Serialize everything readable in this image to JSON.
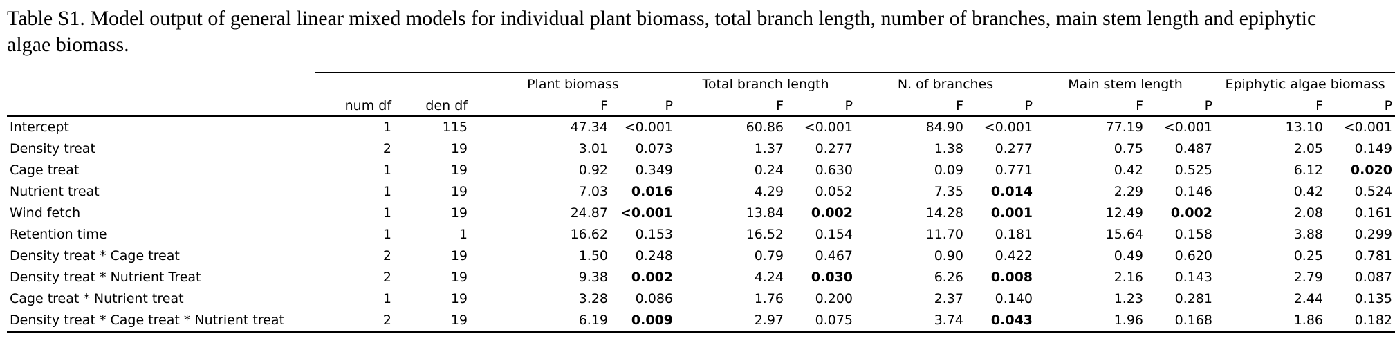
{
  "caption": "Table S1. Model output of general linear mixed models for individual plant biomass, total branch length, number of branches, main stem length and epiphytic algae biomass.",
  "groups": [
    "Plant biomass",
    "Total branch length",
    "N. of branches",
    "Main stem length",
    "Epiphytic algae biomass"
  ],
  "subheaders": {
    "num_df": "num df",
    "den_df": "den df",
    "f": "F",
    "p": "P"
  },
  "rows": [
    {
      "label": "Intercept",
      "num_df": "1",
      "den_df": "115",
      "cells": [
        {
          "f": "47.34",
          "p": "<0.001",
          "bold": false
        },
        {
          "f": "60.86",
          "p": "<0.001",
          "bold": false
        },
        {
          "f": "84.90",
          "p": "<0.001",
          "bold": false
        },
        {
          "f": "77.19",
          "p": "<0.001",
          "bold": false
        },
        {
          "f": "13.10",
          "p": "<0.001",
          "bold": false
        }
      ]
    },
    {
      "label": "Density treat",
      "num_df": "2",
      "den_df": "19",
      "cells": [
        {
          "f": "3.01",
          "p": "0.073",
          "bold": false
        },
        {
          "f": "1.37",
          "p": "0.277",
          "bold": false
        },
        {
          "f": "1.38",
          "p": "0.277",
          "bold": false
        },
        {
          "f": "0.75",
          "p": "0.487",
          "bold": false
        },
        {
          "f": "2.05",
          "p": "0.149",
          "bold": false
        }
      ]
    },
    {
      "label": "Cage treat",
      "num_df": "1",
      "den_df": "19",
      "cells": [
        {
          "f": "0.92",
          "p": "0.349",
          "bold": false
        },
        {
          "f": "0.24",
          "p": "0.630",
          "bold": false
        },
        {
          "f": "0.09",
          "p": "0.771",
          "bold": false
        },
        {
          "f": "0.42",
          "p": "0.525",
          "bold": false
        },
        {
          "f": "6.12",
          "p": "0.020",
          "bold": true
        }
      ]
    },
    {
      "label": "Nutrient treat",
      "num_df": "1",
      "den_df": "19",
      "cells": [
        {
          "f": "7.03",
          "p": "0.016",
          "bold": true
        },
        {
          "f": "4.29",
          "p": "0.052",
          "bold": false
        },
        {
          "f": "7.35",
          "p": "0.014",
          "bold": true
        },
        {
          "f": "2.29",
          "p": "0.146",
          "bold": false
        },
        {
          "f": "0.42",
          "p": "0.524",
          "bold": false
        }
      ]
    },
    {
      "label": "Wind fetch",
      "num_df": "1",
      "den_df": "19",
      "cells": [
        {
          "f": "24.87",
          "p": "<0.001",
          "bold": true
        },
        {
          "f": "13.84",
          "p": "0.002",
          "bold": true
        },
        {
          "f": "14.28",
          "p": "0.001",
          "bold": true
        },
        {
          "f": "12.49",
          "p": "0.002",
          "bold": true
        },
        {
          "f": "2.08",
          "p": "0.161",
          "bold": false
        }
      ]
    },
    {
      "label": "Retention time",
      "num_df": "1",
      "den_df": "1",
      "cells": [
        {
          "f": "16.62",
          "p": "0.153",
          "bold": false
        },
        {
          "f": "16.52",
          "p": "0.154",
          "bold": false
        },
        {
          "f": "11.70",
          "p": "0.181",
          "bold": false
        },
        {
          "f": "15.64",
          "p": "0.158",
          "bold": false
        },
        {
          "f": "3.88",
          "p": "0.299",
          "bold": false
        }
      ]
    },
    {
      "label": "Density treat * Cage treat",
      "num_df": "2",
      "den_df": "19",
      "cells": [
        {
          "f": "1.50",
          "p": "0.248",
          "bold": false
        },
        {
          "f": "0.79",
          "p": "0.467",
          "bold": false
        },
        {
          "f": "0.90",
          "p": "0.422",
          "bold": false
        },
        {
          "f": "0.49",
          "p": "0.620",
          "bold": false
        },
        {
          "f": "0.25",
          "p": "0.781",
          "bold": false
        }
      ]
    },
    {
      "label": "Density treat * Nutrient Treat",
      "num_df": "2",
      "den_df": "19",
      "cells": [
        {
          "f": "9.38",
          "p": "0.002",
          "bold": true
        },
        {
          "f": "4.24",
          "p": "0.030",
          "bold": true
        },
        {
          "f": "6.26",
          "p": "0.008",
          "bold": true
        },
        {
          "f": "2.16",
          "p": "0.143",
          "bold": false
        },
        {
          "f": "2.79",
          "p": "0.087",
          "bold": false
        }
      ]
    },
    {
      "label": "Cage treat * Nutrient treat",
      "num_df": "1",
      "den_df": "19",
      "cells": [
        {
          "f": "3.28",
          "p": "0.086",
          "bold": false
        },
        {
          "f": "1.76",
          "p": "0.200",
          "bold": false
        },
        {
          "f": "2.37",
          "p": "0.140",
          "bold": false
        },
        {
          "f": "1.23",
          "p": "0.281",
          "bold": false
        },
        {
          "f": "2.44",
          "p": "0.135",
          "bold": false
        }
      ]
    },
    {
      "label": "Density treat * Cage treat * Nutrient treat",
      "num_df": "2",
      "den_df": "19",
      "cells": [
        {
          "f": "6.19",
          "p": "0.009",
          "bold": true
        },
        {
          "f": "2.97",
          "p": "0.075",
          "bold": false
        },
        {
          "f": "3.74",
          "p": "0.043",
          "bold": true
        },
        {
          "f": "1.96",
          "p": "0.168",
          "bold": false
        },
        {
          "f": "1.86",
          "p": "0.182",
          "bold": false
        }
      ]
    }
  ]
}
